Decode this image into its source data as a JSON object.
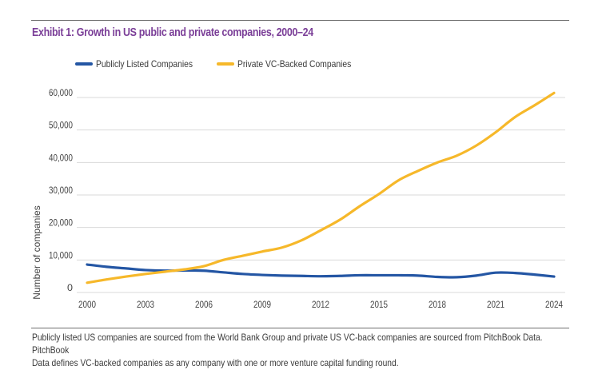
{
  "header": {
    "title": "Exhibit 1: Growth in US public and private companies, 2000–24"
  },
  "footnote": {
    "line1": "Publicly listed US companies are sourced from the World Bank Group and private US VC-back companies are sourced from PitchBook Data. PitchBook",
    "line2": "Data defines VC-backed companies as any company with one or more venture capital funding round."
  },
  "colors": {
    "title": "#7b3f98",
    "public": "#2456a4",
    "private": "#f6b82a",
    "grid": "#d9d9d9",
    "rule": "#6f6f6f"
  },
  "chart_data": {
    "type": "line",
    "title": "Exhibit 1: Growth in US public and private companies, 2000–24",
    "xlabel": "",
    "ylabel": "Number of companies",
    "x": [
      2000,
      2001,
      2002,
      2003,
      2004,
      2005,
      2006,
      2007,
      2008,
      2009,
      2010,
      2011,
      2012,
      2013,
      2014,
      2015,
      2016,
      2017,
      2018,
      2019,
      2020,
      2021,
      2022,
      2023,
      2024
    ],
    "xticks": [
      "2000",
      "2003",
      "2006",
      "2009",
      "2012",
      "2015",
      "2018",
      "2021",
      "2024"
    ],
    "xtick_values": [
      2000,
      2003,
      2006,
      2009,
      2012,
      2015,
      2018,
      2021,
      2024
    ],
    "xlim": [
      2000,
      2024
    ],
    "yticks": [
      "0",
      "10,000",
      "20,000",
      "30,000",
      "40,000",
      "50,000",
      "60,000"
    ],
    "ytick_values": [
      0,
      10000,
      20000,
      30000,
      40000,
      50000,
      60000
    ],
    "ylim": [
      0,
      60000
    ],
    "grid": true,
    "legend_position": "top-left",
    "series": [
      {
        "name": "Publicly Listed Companies",
        "color": "#2456a4",
        "values": [
          8600,
          7900,
          7400,
          6900,
          6700,
          6800,
          6700,
          6200,
          5700,
          5400,
          5200,
          5100,
          5000,
          5100,
          5300,
          5300,
          5300,
          5200,
          4800,
          4700,
          5200,
          6100,
          6000,
          5500,
          4900
        ]
      },
      {
        "name": "Private VC-Backed Companies",
        "color": "#f6b82a",
        "values": [
          3000,
          4000,
          4900,
          5700,
          6400,
          7100,
          8100,
          10000,
          11300,
          12600,
          13800,
          16000,
          19100,
          22400,
          26500,
          30300,
          34500,
          37400,
          40000,
          42100,
          45200,
          49300,
          54000,
          57600,
          61400
        ]
      }
    ]
  }
}
